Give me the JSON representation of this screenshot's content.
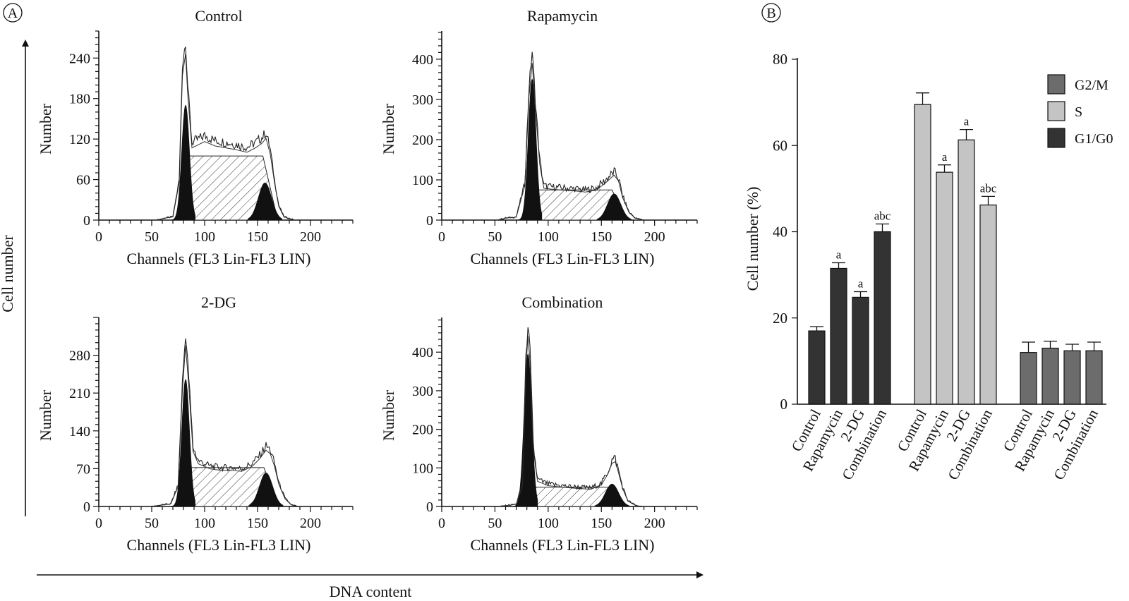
{
  "figure": {
    "panel_a_letter": "A",
    "panel_b_letter": "B",
    "a_y_label": "Cell number",
    "a_x_label": "DNA content"
  },
  "chart_data": [
    {
      "type": "area",
      "panel": "A",
      "title": "Control",
      "xlabel": "Channels (FL3 Lin-FL3 LIN)",
      "ylabel": "Number",
      "xlim": [
        0,
        240
      ],
      "xticks": [
        0,
        50,
        100,
        150,
        200
      ],
      "ylim": [
        0,
        280
      ],
      "yticks": [
        0,
        60,
        120,
        180,
        240
      ],
      "components": {
        "g1_peak": {
          "channel": 82,
          "height": 170
        },
        "s_phase_plateau": 95,
        "g2m_peak": {
          "channel": 157,
          "height": 55
        }
      },
      "envelope": [
        [
          55,
          0
        ],
        [
          62,
          3
        ],
        [
          70,
          5
        ],
        [
          76,
          60
        ],
        [
          79,
          230
        ],
        [
          82,
          265
        ],
        [
          84,
          200
        ],
        [
          88,
          115
        ],
        [
          100,
          125
        ],
        [
          110,
          118
        ],
        [
          120,
          115
        ],
        [
          130,
          112
        ],
        [
          140,
          108
        ],
        [
          148,
          115
        ],
        [
          154,
          122
        ],
        [
          158,
          130
        ],
        [
          162,
          105
        ],
        [
          166,
          60
        ],
        [
          170,
          22
        ],
        [
          175,
          5
        ],
        [
          185,
          0
        ]
      ]
    },
    {
      "type": "area",
      "panel": "A",
      "title": "Rapamycin",
      "xlabel": "Channels (FL3 Lin-FL3 LIN)",
      "ylabel": "Number",
      "xlim": [
        0,
        240
      ],
      "xticks": [
        0,
        50,
        100,
        150,
        200
      ],
      "ylim": [
        0,
        470
      ],
      "yticks": [
        0,
        100,
        200,
        300,
        400
      ],
      "components": {
        "g1_peak": {
          "channel": 85,
          "height": 350
        },
        "s_phase_plateau": 75,
        "g2m_peak": {
          "channel": 162,
          "height": 65
        }
      },
      "envelope": [
        [
          52,
          0
        ],
        [
          60,
          5
        ],
        [
          70,
          8
        ],
        [
          78,
          90
        ],
        [
          82,
          330
        ],
        [
          85,
          420
        ],
        [
          88,
          300
        ],
        [
          92,
          150
        ],
        [
          96,
          85
        ],
        [
          105,
          82
        ],
        [
          115,
          80
        ],
        [
          125,
          78
        ],
        [
          135,
          75
        ],
        [
          145,
          80
        ],
        [
          152,
          95
        ],
        [
          158,
          110
        ],
        [
          162,
          120
        ],
        [
          166,
          105
        ],
        [
          170,
          60
        ],
        [
          176,
          20
        ],
        [
          182,
          5
        ],
        [
          190,
          0
        ]
      ]
    },
    {
      "type": "area",
      "panel": "A",
      "title": "2-DG",
      "xlabel": "Channels (FL3 Lin-FL3 LIN)",
      "ylabel": "Number",
      "xlim": [
        0,
        240
      ],
      "xticks": [
        0,
        50,
        100,
        150,
        200
      ],
      "ylim": [
        0,
        350
      ],
      "yticks": [
        0,
        70,
        140,
        210,
        280
      ],
      "components": {
        "g1_peak": {
          "channel": 82,
          "height": 235
        },
        "s_phase_plateau": 72,
        "g2m_peak": {
          "channel": 158,
          "height": 62
        }
      },
      "envelope": [
        [
          50,
          0
        ],
        [
          60,
          3
        ],
        [
          68,
          5
        ],
        [
          75,
          40
        ],
        [
          79,
          230
        ],
        [
          82,
          320
        ],
        [
          85,
          240
        ],
        [
          89,
          110
        ],
        [
          94,
          85
        ],
        [
          105,
          75
        ],
        [
          115,
          72
        ],
        [
          125,
          72
        ],
        [
          135,
          70
        ],
        [
          145,
          80
        ],
        [
          152,
          95
        ],
        [
          158,
          112
        ],
        [
          162,
          105
        ],
        [
          166,
          80
        ],
        [
          170,
          45
        ],
        [
          176,
          15
        ],
        [
          182,
          3
        ],
        [
          188,
          0
        ]
      ]
    },
    {
      "type": "area",
      "panel": "A",
      "title": "Combination",
      "xlabel": "Channels (FL3 Lin-FL3 LIN)",
      "ylabel": "Number",
      "xlim": [
        0,
        240
      ],
      "xticks": [
        0,
        50,
        100,
        150,
        200
      ],
      "ylim": [
        0,
        490
      ],
      "yticks": [
        0,
        100,
        200,
        300,
        400
      ],
      "components": {
        "g1_peak": {
          "channel": 81,
          "height": 395
        },
        "s_phase_plateau": 50,
        "g2m_peak": {
          "channel": 160,
          "height": 58
        }
      },
      "envelope": [
        [
          55,
          0
        ],
        [
          62,
          3
        ],
        [
          70,
          6
        ],
        [
          76,
          60
        ],
        [
          79,
          380
        ],
        [
          81,
          475
        ],
        [
          83,
          400
        ],
        [
          86,
          160
        ],
        [
          90,
          70
        ],
        [
          100,
          58
        ],
        [
          110,
          55
        ],
        [
          120,
          52
        ],
        [
          130,
          50
        ],
        [
          140,
          48
        ],
        [
          150,
          60
        ],
        [
          156,
          90
        ],
        [
          160,
          120
        ],
        [
          163,
          125
        ],
        [
          166,
          95
        ],
        [
          170,
          50
        ],
        [
          175,
          15
        ],
        [
          182,
          3
        ],
        [
          188,
          0
        ]
      ]
    },
    {
      "type": "bar",
      "panel": "B",
      "ylabel": "Cell number (%)",
      "ylim": [
        0,
        80
      ],
      "yticks": [
        0,
        20,
        40,
        60,
        80
      ],
      "categories": [
        "Control",
        "Rapamycin",
        "2-DG",
        "Combination"
      ],
      "series": [
        {
          "name": "G1/G0",
          "color": "#333333",
          "values": [
            17,
            31.5,
            24.8,
            40
          ],
          "errors": [
            1.0,
            1.3,
            1.3,
            1.8
          ],
          "annotations": [
            "",
            "a",
            "a",
            "abc"
          ]
        },
        {
          "name": "S",
          "color": "#c4c4c4",
          "values": [
            69.5,
            53.8,
            61.3,
            46.2
          ],
          "errors": [
            2.7,
            1.7,
            2.4,
            2.0
          ],
          "annotations": [
            "",
            "a",
            "a",
            "abc"
          ]
        },
        {
          "name": "G2/M",
          "color": "#6c6c6c",
          "values": [
            12,
            13,
            12.4,
            12.4
          ],
          "errors": [
            2.4,
            1.6,
            1.5,
            2.0
          ],
          "annotations": [
            "",
            "",
            "",
            ""
          ]
        }
      ],
      "legend": {
        "position": "top-right",
        "order": [
          "G2/M",
          "S",
          "G1/G0"
        ]
      }
    }
  ]
}
